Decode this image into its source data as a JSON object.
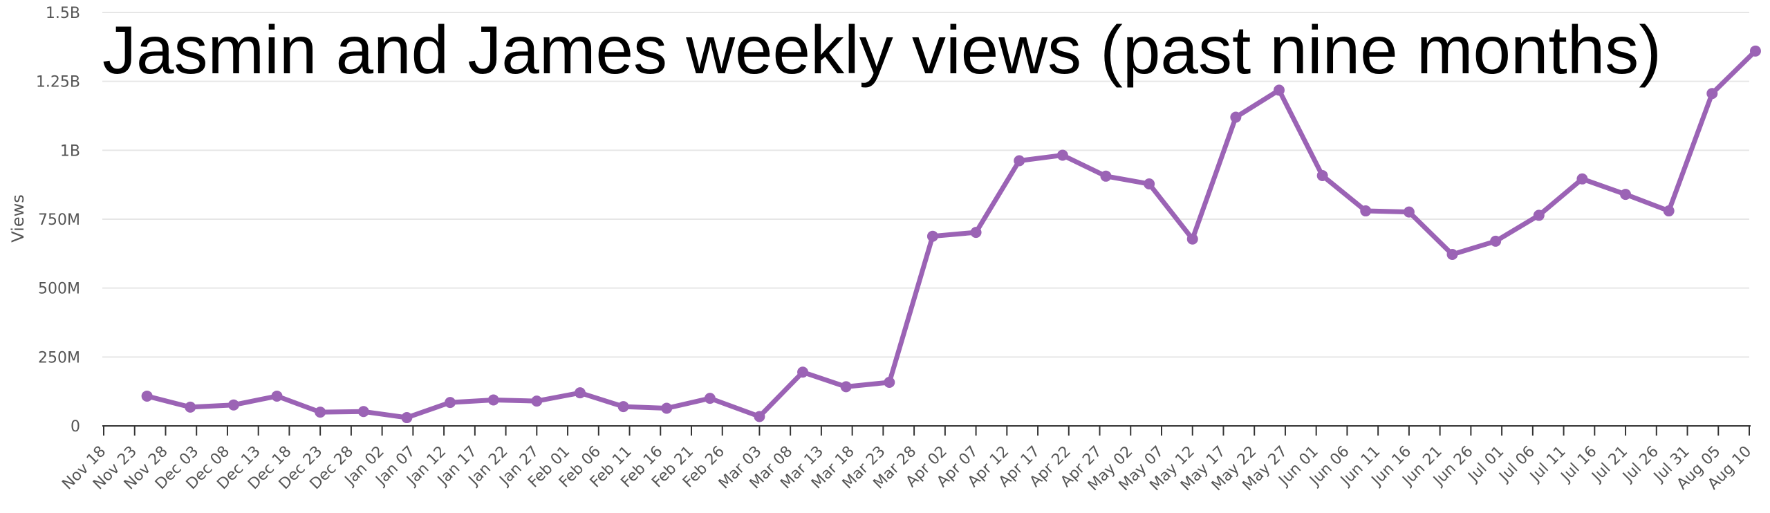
{
  "chart_data": {
    "type": "line",
    "title": "Jasmin and James weekly views (past nine months)",
    "xlabel": "",
    "ylabel": "Views",
    "ylim": [
      0,
      1500000000
    ],
    "yticks": [
      0,
      250000000,
      500000000,
      750000000,
      1000000000,
      1250000000,
      1500000000
    ],
    "ytick_labels": [
      "0",
      "250M",
      "500M",
      "750M",
      "1B",
      "1.25B",
      "1.5B"
    ],
    "grid": true,
    "legend": "none",
    "colors": {
      "line": "#9b63b5",
      "grid": "#e6e6e6",
      "axis": "#333333",
      "tick_text": "#555555",
      "title": "#000000"
    },
    "categories": [
      "Nov 18",
      "Nov 23",
      "Nov 28",
      "Dec 03",
      "Dec 08",
      "Dec 13",
      "Dec 18",
      "Dec 23",
      "Dec 28",
      "Jan 02",
      "Jan 07",
      "Jan 12",
      "Jan 17",
      "Jan 22",
      "Jan 27",
      "Feb 01",
      "Feb 06",
      "Feb 11",
      "Feb 16",
      "Feb 21",
      "Feb 26",
      "Mar 03",
      "Mar 08",
      "Mar 13",
      "Mar 18",
      "Mar 23",
      "Mar 28",
      "Apr 02",
      "Apr 07",
      "Apr 12",
      "Apr 17",
      "Apr 22",
      "Apr 27",
      "May 02",
      "May 07",
      "May 12",
      "May 17",
      "May 22",
      "May 27",
      "Jun 01",
      "Jun 06",
      "Jun 11",
      "Jun 16",
      "Jun 21",
      "Jun 26",
      "Jul 01",
      "Jul 06",
      "Jul 11",
      "Jul 16",
      "Jul 21",
      "Jul 26",
      "Jul 31",
      "Aug 05",
      "Aug 10"
    ],
    "series": [
      {
        "points": [
          {
            "x": "Nov 25",
            "y": 108000000
          },
          {
            "x": "Dec 02",
            "y": 68000000
          },
          {
            "x": "Dec 09",
            "y": 76000000
          },
          {
            "x": "Dec 16",
            "y": 108000000
          },
          {
            "x": "Dec 23",
            "y": 50000000
          },
          {
            "x": "Dec 30",
            "y": 52000000
          },
          {
            "x": "Jan 06",
            "y": 30000000
          },
          {
            "x": "Jan 13",
            "y": 85000000
          },
          {
            "x": "Jan 20",
            "y": 94000000
          },
          {
            "x": "Jan 27",
            "y": 90000000
          },
          {
            "x": "Feb 03",
            "y": 120000000
          },
          {
            "x": "Feb 10",
            "y": 70000000
          },
          {
            "x": "Feb 17",
            "y": 64000000
          },
          {
            "x": "Feb 24",
            "y": 100000000
          },
          {
            "x": "Mar 03",
            "y": 34000000
          },
          {
            "x": "Mar 10",
            "y": 195000000
          },
          {
            "x": "Mar 17",
            "y": 142000000
          },
          {
            "x": "Mar 24",
            "y": 158000000
          },
          {
            "x": "Mar 31",
            "y": 688000000
          },
          {
            "x": "Apr 07",
            "y": 702000000
          },
          {
            "x": "Apr 14",
            "y": 962000000
          },
          {
            "x": "Apr 21",
            "y": 982000000
          },
          {
            "x": "Apr 28",
            "y": 906000000
          },
          {
            "x": "May 05",
            "y": 878000000
          },
          {
            "x": "May 12",
            "y": 678000000
          },
          {
            "x": "May 19",
            "y": 1120000000
          },
          {
            "x": "May 26",
            "y": 1218000000
          },
          {
            "x": "Jun 02",
            "y": 908000000
          },
          {
            "x": "Jun 09",
            "y": 780000000
          },
          {
            "x": "Jun 16",
            "y": 776000000
          },
          {
            "x": "Jun 23",
            "y": 622000000
          },
          {
            "x": "Jun 30",
            "y": 670000000
          },
          {
            "x": "Jul 07",
            "y": 764000000
          },
          {
            "x": "Jul 14",
            "y": 896000000
          },
          {
            "x": "Jul 21",
            "y": 840000000
          },
          {
            "x": "Jul 28",
            "y": 780000000
          },
          {
            "x": "Aug 04",
            "y": 1206000000
          },
          {
            "x": "Aug 11",
            "y": 1360000000
          }
        ]
      }
    ]
  }
}
